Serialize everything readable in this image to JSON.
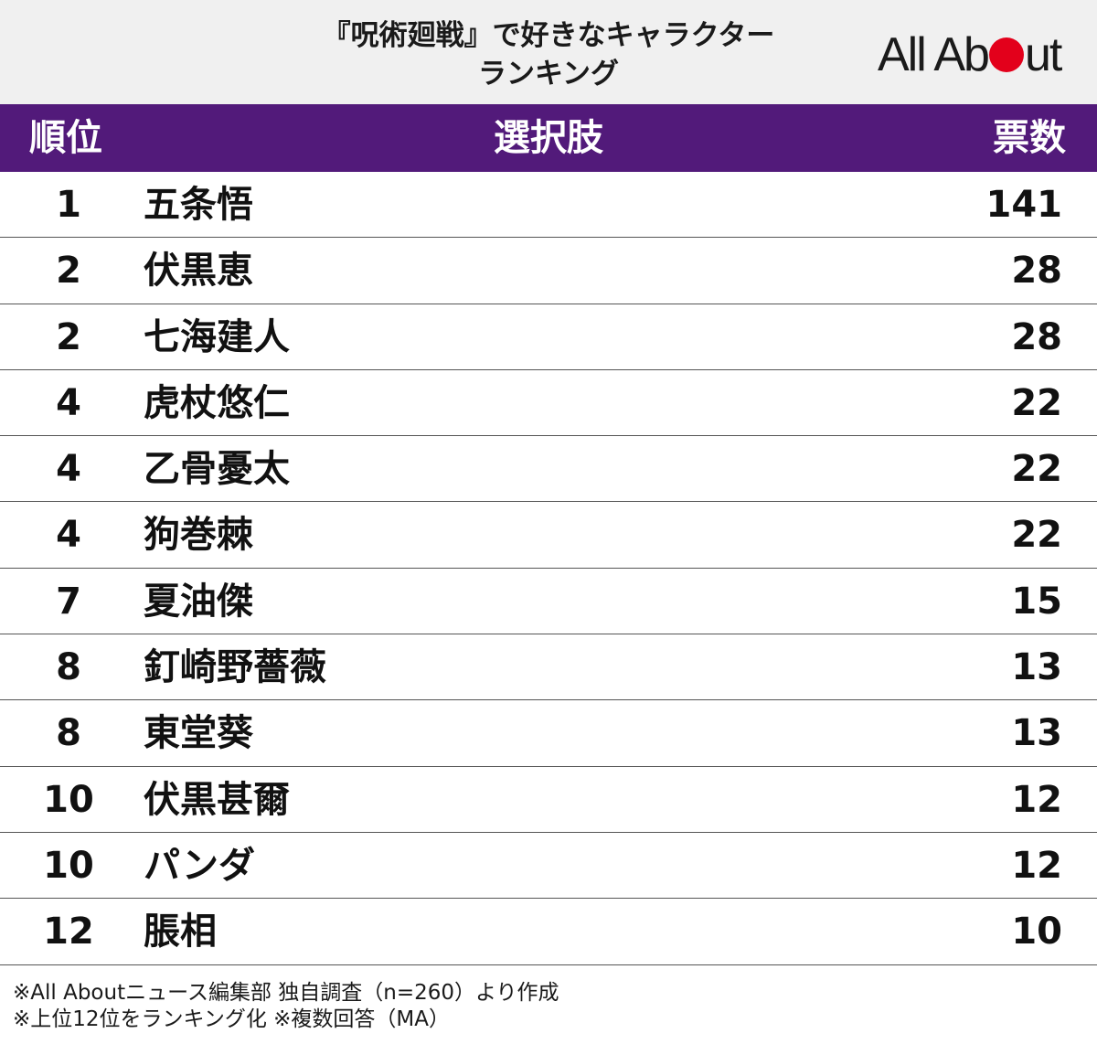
{
  "title": {
    "line1": "『呪術廻戦』で好きなキャラクター",
    "line2": "ランキング"
  },
  "logo": {
    "text_before": "All Ab",
    "text_after": "ut",
    "dot_color": "#e3001b"
  },
  "colors": {
    "header_bg": "#f0f0f0",
    "table_header_bg": "#521a7a",
    "table_header_text": "#ffffff"
  },
  "chart_data": {
    "type": "table",
    "columns": [
      "順位",
      "選択肢",
      "票数"
    ],
    "rows": [
      {
        "rank": "1",
        "name": "五条悟",
        "votes": "141"
      },
      {
        "rank": "2",
        "name": "伏黒恵",
        "votes": "28"
      },
      {
        "rank": "2",
        "name": "七海建人",
        "votes": "28"
      },
      {
        "rank": "4",
        "name": "虎杖悠仁",
        "votes": "22"
      },
      {
        "rank": "4",
        "name": "乙骨憂太",
        "votes": "22"
      },
      {
        "rank": "4",
        "name": "狗巻棘",
        "votes": "22"
      },
      {
        "rank": "7",
        "name": "夏油傑",
        "votes": "15"
      },
      {
        "rank": "8",
        "name": "釘崎野薔薇",
        "votes": "13"
      },
      {
        "rank": "8",
        "name": "東堂葵",
        "votes": "13"
      },
      {
        "rank": "10",
        "name": "伏黒甚爾",
        "votes": "12"
      },
      {
        "rank": "10",
        "name": "パンダ",
        "votes": "12"
      },
      {
        "rank": "12",
        "name": "脹相",
        "votes": "10"
      }
    ]
  },
  "footer": {
    "line1": "※All Aboutニュース編集部 独自調査（n=260）より作成",
    "line2": "※上位12位をランキング化 ※複数回答（MA）"
  }
}
